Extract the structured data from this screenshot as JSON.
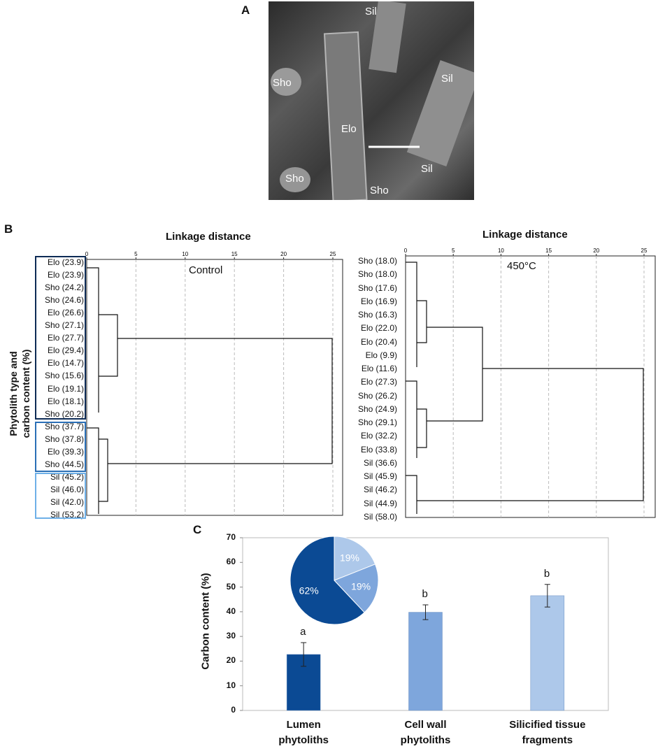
{
  "panel_letters": {
    "a": "A",
    "b": "B",
    "c": "C"
  },
  "sem": {
    "labels": [
      "Sil",
      "Sho",
      "Sil",
      "Elo",
      "Sil",
      "Sho",
      "Sho"
    ]
  },
  "dendrogram_control": {
    "title": "Linkage distance",
    "condition": "Control",
    "y_label_line1": "Phytolith type and",
    "y_label_line2": "carbon content (%)",
    "ticks": [
      "0",
      "5",
      "10",
      "15",
      "20",
      "25"
    ],
    "leaves": [
      "Elo (23.9)",
      "Elo (23.9)",
      "Sho (24.2)",
      "Sho (24.6)",
      "Elo (26.6)",
      "Sho (27.1)",
      "Elo (27.7)",
      "Elo (29.4)",
      "Elo (14.7)",
      "Sho (15.6)",
      "Elo (19.1)",
      "Elo (18.1)",
      "Sho (20.2)",
      "Sho (37.7)",
      "Sho (37.8)",
      "Elo (39.3)",
      "Sho (44.5)",
      "Sil (45.2)",
      "Sil (46.0)",
      "Sil (42.0)",
      "Sil (53.2)"
    ]
  },
  "dendrogram_450": {
    "title": "Linkage distance",
    "condition": "450°C",
    "ticks": [
      "0",
      "5",
      "10",
      "15",
      "20",
      "25"
    ],
    "leaves": [
      "Sho (18.0)",
      "Sho (18.0)",
      "Sho (17.6)",
      "Elo (16.9)",
      "Sho (16.3)",
      "Elo (22.0)",
      "Elo (20.4)",
      "Elo (9.9)",
      "Elo (11.6)",
      "Elo (27.3)",
      "Sho (26.2)",
      "Sho (24.9)",
      "Sho (29.1)",
      "Elo (32.2)",
      "Elo (33.8)",
      "Sil (36.6)",
      "Sil (45.9)",
      "Sil (46.2)",
      "Sil (44.9)",
      "Sil (58.0)"
    ]
  },
  "chart_data": {
    "type": "bar",
    "ylabel": "Carbon content (%)",
    "ylim": [
      0,
      70
    ],
    "yticks": [
      "0",
      "10",
      "20",
      "30",
      "40",
      "50",
      "60",
      "70"
    ],
    "categories": [
      "Lumen phytoliths",
      "Cell wall phytoliths",
      "Silicified tissue fragments"
    ],
    "category_lines": [
      [
        "Lumen",
        "phytoliths"
      ],
      [
        "Cell wall",
        "phytoliths"
      ],
      [
        "Silicified tissue",
        "fragments"
      ]
    ],
    "values": [
      22.7,
      39.8,
      46.5
    ],
    "errors": [
      4.8,
      3.0,
      4.6
    ],
    "significance": [
      "a",
      "b",
      "b"
    ],
    "colors": [
      "#0b4a94",
      "#7ea6dc",
      "#adc8ea"
    ],
    "pie": {
      "values": [
        62,
        19,
        19
      ],
      "labels": [
        "62%",
        "19%",
        "19%"
      ],
      "colors": [
        "#0b4a94",
        "#7ea6dc",
        "#adc8ea"
      ]
    }
  }
}
